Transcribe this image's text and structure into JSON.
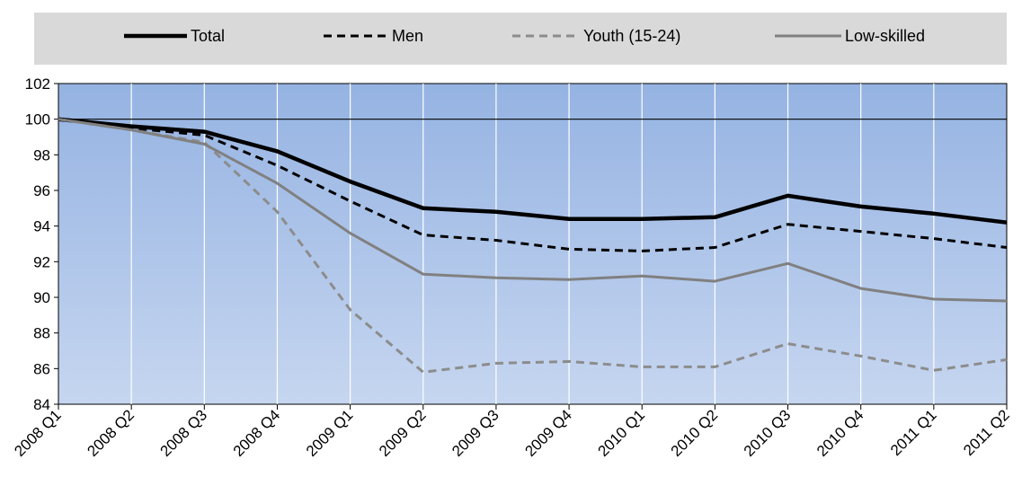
{
  "chart_data": {
    "type": "line",
    "title": "",
    "xlabel": "",
    "ylabel": "",
    "categories": [
      "2008 Q1",
      "2008 Q2",
      "2008 Q3",
      "2008 Q4",
      "2009 Q1",
      "2009 Q2",
      "2009 Q3",
      "2009 Q4",
      "2010 Q1",
      "2010 Q2",
      "2010 Q3",
      "2010 Q4",
      "2011 Q1",
      "2011 Q2"
    ],
    "ylim": [
      84,
      102
    ],
    "yticks": [
      84,
      86,
      88,
      90,
      92,
      94,
      96,
      98,
      100,
      102
    ],
    "reference_line": 100,
    "grid": true,
    "legend_position": "top",
    "series": [
      {
        "name": "Total",
        "color": "#000000",
        "style": "solid-thick",
        "values": [
          100,
          99.6,
          99.3,
          98.2,
          96.5,
          95.0,
          94.8,
          94.4,
          94.4,
          94.5,
          95.7,
          95.1,
          94.7,
          94.2
        ]
      },
      {
        "name": "Men",
        "color": "#000000",
        "style": "dashed",
        "values": [
          100,
          99.5,
          99.1,
          97.4,
          95.4,
          93.5,
          93.2,
          92.7,
          92.6,
          92.8,
          94.1,
          93.7,
          93.3,
          92.8
        ]
      },
      {
        "name": "Youth (15-24)",
        "color": "#8c8c8c",
        "style": "dashed",
        "values": [
          100,
          99.4,
          98.7,
          94.8,
          89.3,
          85.8,
          86.3,
          86.4,
          86.1,
          86.1,
          87.4,
          86.7,
          85.9,
          86.5
        ]
      },
      {
        "name": "Low-skilled",
        "color": "#808080",
        "style": "solid",
        "values": [
          100,
          99.4,
          98.6,
          96.4,
          93.6,
          91.3,
          91.1,
          91.0,
          91.2,
          90.9,
          91.9,
          90.5,
          89.9,
          89.8
        ]
      }
    ],
    "colors": {
      "plot_top": "#95b3e2",
      "plot_bottom": "#c6d6f0",
      "legend_bg": "#d9d9d9",
      "grid": "#ffffff"
    }
  }
}
